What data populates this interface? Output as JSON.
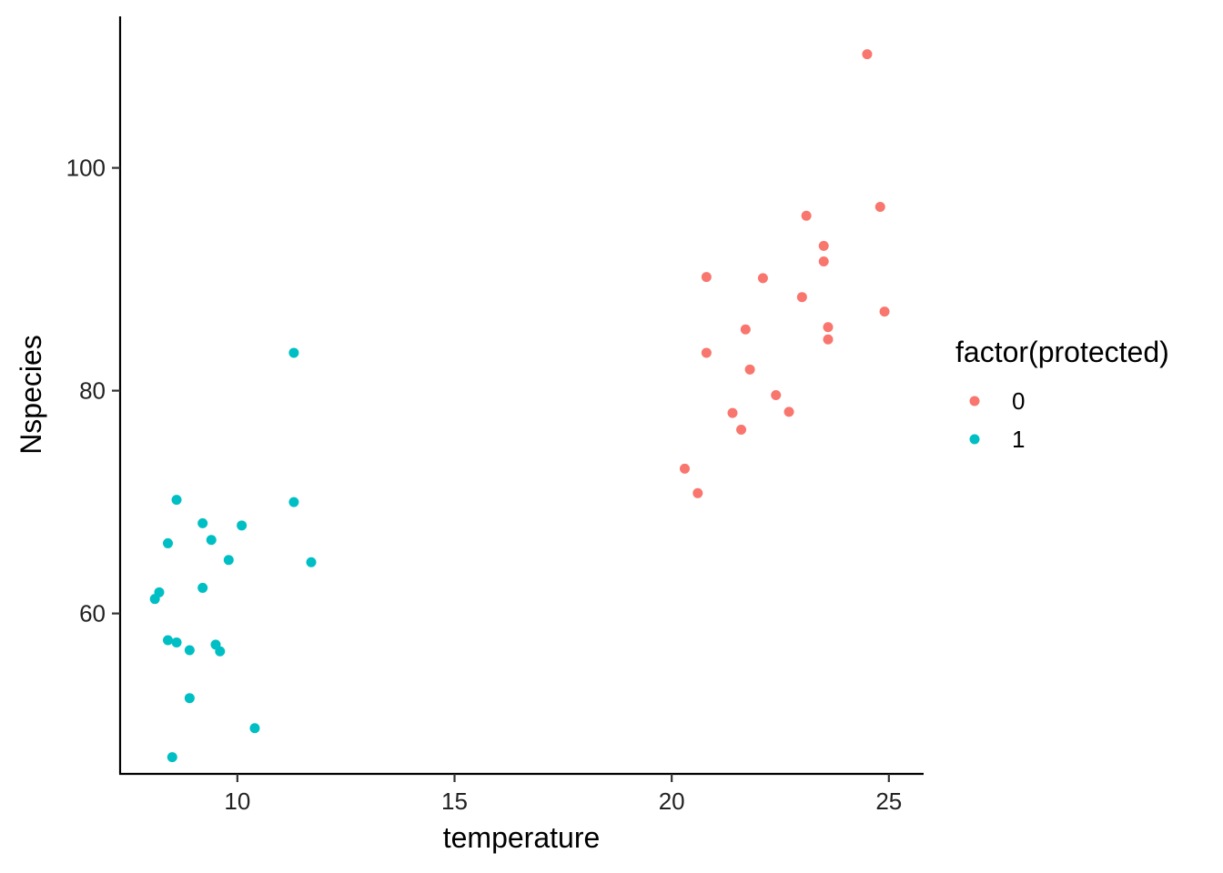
{
  "chart_data": {
    "type": "scatter",
    "title": "",
    "xlabel": "temperature",
    "ylabel": "Nspecies",
    "xlim": [
      7.3,
      25.8
    ],
    "ylim": [
      45.6,
      113.6
    ],
    "x_ticks": [
      10,
      15,
      20,
      25
    ],
    "y_ticks": [
      60,
      80,
      100
    ],
    "grid": false,
    "legend": {
      "title": "factor(protected)",
      "placement": "right"
    },
    "series": [
      {
        "name": "0",
        "color": "#F8766D",
        "points": [
          {
            "x": 24.5,
            "y": 110.2
          },
          {
            "x": 24.8,
            "y": 96.5
          },
          {
            "x": 23.1,
            "y": 95.7
          },
          {
            "x": 23.5,
            "y": 93.0
          },
          {
            "x": 23.5,
            "y": 91.6
          },
          {
            "x": 20.8,
            "y": 90.2
          },
          {
            "x": 22.1,
            "y": 90.1
          },
          {
            "x": 23.0,
            "y": 88.4
          },
          {
            "x": 24.9,
            "y": 87.1
          },
          {
            "x": 23.6,
            "y": 85.7
          },
          {
            "x": 21.7,
            "y": 85.5
          },
          {
            "x": 23.6,
            "y": 84.6
          },
          {
            "x": 20.8,
            "y": 83.4
          },
          {
            "x": 21.8,
            "y": 81.9
          },
          {
            "x": 22.4,
            "y": 79.6
          },
          {
            "x": 22.7,
            "y": 78.1
          },
          {
            "x": 21.4,
            "y": 78.0
          },
          {
            "x": 21.6,
            "y": 76.5
          },
          {
            "x": 20.3,
            "y": 73.0
          },
          {
            "x": 20.6,
            "y": 70.8
          }
        ]
      },
      {
        "name": "1",
        "color": "#00BFC4",
        "points": [
          {
            "x": 11.3,
            "y": 83.4
          },
          {
            "x": 8.6,
            "y": 70.2
          },
          {
            "x": 11.3,
            "y": 70.0
          },
          {
            "x": 9.2,
            "y": 68.1
          },
          {
            "x": 10.1,
            "y": 67.9
          },
          {
            "x": 9.4,
            "y": 66.6
          },
          {
            "x": 8.4,
            "y": 66.3
          },
          {
            "x": 9.8,
            "y": 64.8
          },
          {
            "x": 11.7,
            "y": 64.6
          },
          {
            "x": 9.2,
            "y": 62.3
          },
          {
            "x": 8.2,
            "y": 61.9
          },
          {
            "x": 8.1,
            "y": 61.3
          },
          {
            "x": 8.4,
            "y": 57.6
          },
          {
            "x": 8.6,
            "y": 57.4
          },
          {
            "x": 9.5,
            "y": 57.2
          },
          {
            "x": 8.9,
            "y": 56.7
          },
          {
            "x": 9.6,
            "y": 56.6
          },
          {
            "x": 8.9,
            "y": 52.4
          },
          {
            "x": 10.4,
            "y": 49.7
          },
          {
            "x": 8.5,
            "y": 47.1
          }
        ]
      }
    ]
  }
}
